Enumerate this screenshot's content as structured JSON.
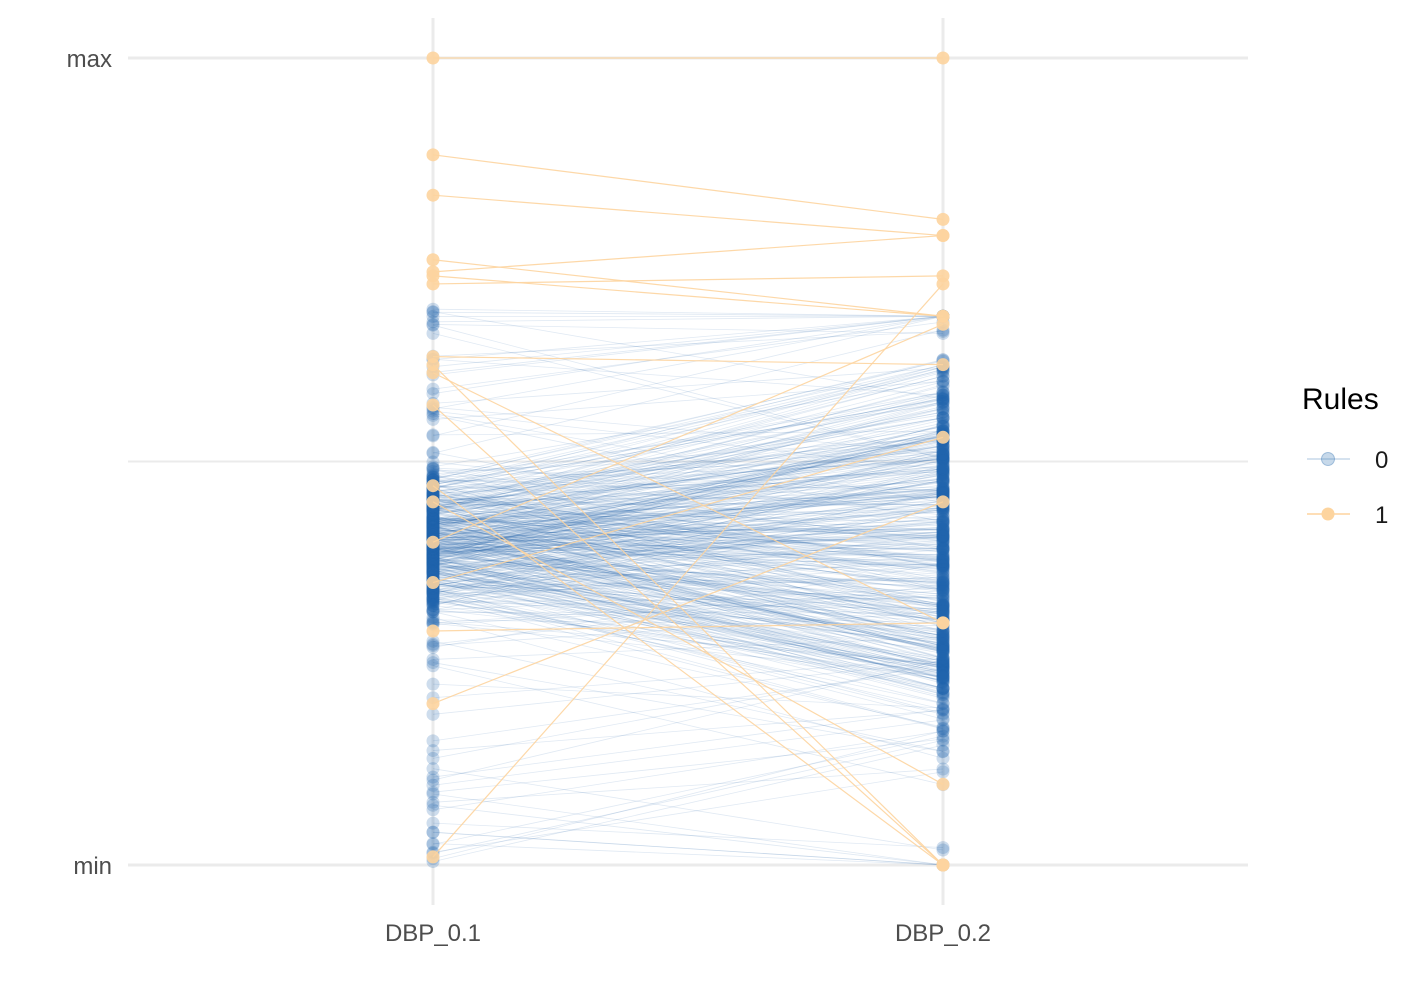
{
  "chart_data": {
    "type": "parallel-coordinates",
    "categories": [
      "DBP_0.1",
      "DBP_0.2"
    ],
    "y_tick_labels": {
      "top": "max",
      "bottom": "min"
    },
    "ylim": [
      0,
      1
    ],
    "grid": true,
    "legend": {
      "title": "Rules",
      "placement": "right",
      "entries": [
        {
          "label": "0",
          "color": "#2166ac"
        },
        {
          "label": "1",
          "color": "#fdd49e"
        }
      ]
    },
    "series": [
      {
        "name": "0",
        "color": "#2166ac",
        "n_lines": 520,
        "y_range": [
          0.0,
          0.69
        ],
        "typical_range": [
          0.28,
          0.52
        ]
      },
      {
        "name": "1",
        "color": "#fdd49e",
        "lines": [
          [
            1.0,
            1.0
          ],
          [
            0.88,
            0.8
          ],
          [
            0.83,
            0.78
          ],
          [
            0.75,
            0.68
          ],
          [
            0.735,
            0.78
          ],
          [
            0.73,
            0.68
          ],
          [
            0.72,
            0.73
          ],
          [
            0.63,
            0.62
          ],
          [
            0.62,
            0.0
          ],
          [
            0.61,
            0.3
          ],
          [
            0.57,
            0.0
          ],
          [
            0.47,
            0.0
          ],
          [
            0.45,
            0.1
          ],
          [
            0.4,
            0.67
          ],
          [
            0.35,
            0.53
          ],
          [
            0.29,
            0.3
          ],
          [
            0.2,
            0.45
          ],
          [
            0.01,
            0.72
          ]
        ]
      }
    ]
  }
}
